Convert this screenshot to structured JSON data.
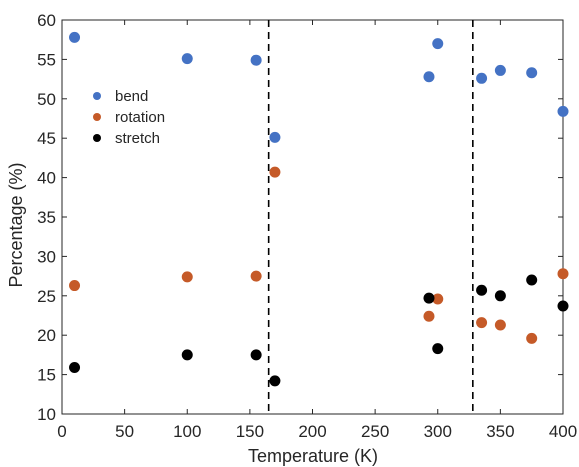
{
  "chart_data": {
    "type": "scatter",
    "title": "",
    "xlabel": "Temperature (K)",
    "ylabel": "Percentage (%)",
    "xlim": [
      0,
      400
    ],
    "ylim": [
      10,
      60
    ],
    "xticks": [
      "0",
      "50",
      "100",
      "150",
      "200",
      "250",
      "300",
      "350",
      "400"
    ],
    "yticks": [
      "10",
      "15",
      "20",
      "25",
      "30",
      "35",
      "40",
      "45",
      "50",
      "55",
      "60"
    ],
    "grid": false,
    "legend_position": "upper-left",
    "vertical_lines": [
      165,
      328
    ],
    "series": [
      {
        "name": "bend",
        "color": "#4472c4",
        "points": [
          {
            "x": 10,
            "y": 57.8
          },
          {
            "x": 100,
            "y": 55.1
          },
          {
            "x": 155,
            "y": 54.9
          },
          {
            "x": 170,
            "y": 45.1
          },
          {
            "x": 293,
            "y": 52.8
          },
          {
            "x": 300,
            "y": 57.0
          },
          {
            "x": 335,
            "y": 52.6
          },
          {
            "x": 350,
            "y": 53.6
          },
          {
            "x": 375,
            "y": 53.3
          },
          {
            "x": 400,
            "y": 48.4
          }
        ]
      },
      {
        "name": "rotation",
        "color": "#c55a28",
        "points": [
          {
            "x": 10,
            "y": 26.3
          },
          {
            "x": 100,
            "y": 27.4
          },
          {
            "x": 155,
            "y": 27.5
          },
          {
            "x": 170,
            "y": 40.7
          },
          {
            "x": 293,
            "y": 22.4
          },
          {
            "x": 300,
            "y": 24.6
          },
          {
            "x": 335,
            "y": 21.6
          },
          {
            "x": 350,
            "y": 21.3
          },
          {
            "x": 375,
            "y": 19.6
          },
          {
            "x": 400,
            "y": 27.8
          }
        ]
      },
      {
        "name": "stretch",
        "color": "#000000",
        "points": [
          {
            "x": 10,
            "y": 15.9
          },
          {
            "x": 100,
            "y": 17.5
          },
          {
            "x": 155,
            "y": 17.5
          },
          {
            "x": 170,
            "y": 14.2
          },
          {
            "x": 293,
            "y": 24.7
          },
          {
            "x": 300,
            "y": 18.3
          },
          {
            "x": 335,
            "y": 25.7
          },
          {
            "x": 350,
            "y": 25.0
          },
          {
            "x": 375,
            "y": 27.0
          },
          {
            "x": 400,
            "y": 23.7
          }
        ]
      }
    ]
  }
}
